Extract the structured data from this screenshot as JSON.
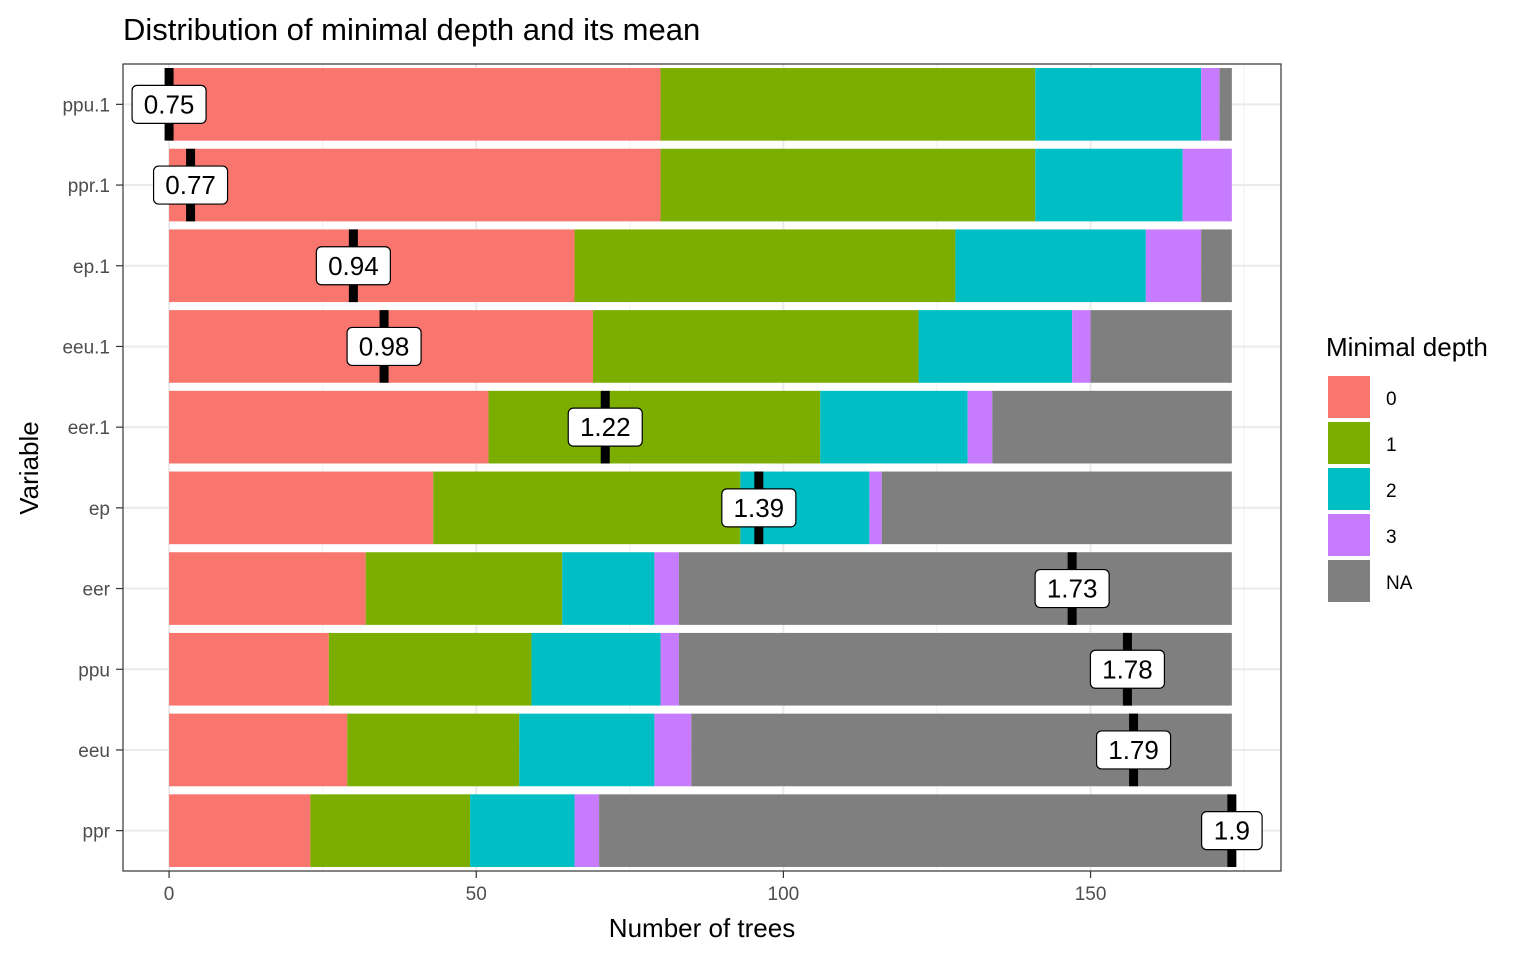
{
  "chart_data": {
    "type": "bar",
    "orientation": "horizontal",
    "stacked": true,
    "title": "Distribution of minimal depth and its mean",
    "xlabel": "Number of trees",
    "ylabel": "Variable",
    "xlim": [
      -7.5,
      181
    ],
    "xticks": [
      0,
      50,
      100,
      150
    ],
    "xtick_labels": [
      "0",
      "50",
      "100",
      "150"
    ],
    "grid": true,
    "legend": {
      "title": "Minimal depth",
      "position": "right",
      "entries": [
        {
          "label": "0",
          "color": "#F8766D"
        },
        {
          "label": "1",
          "color": "#7CAE00"
        },
        {
          "label": "2",
          "color": "#00BFC4"
        },
        {
          "label": "3",
          "color": "#C77CFF"
        },
        {
          "label": "NA",
          "color": "#7F7F7F"
        }
      ]
    },
    "categories": [
      "ppu.1",
      "ppr.1",
      "ep.1",
      "eeu.1",
      "eer.1",
      "ep",
      "eer",
      "ppu",
      "eeu",
      "ppr"
    ],
    "series": [
      {
        "name": "0",
        "color": "#F8766D",
        "values": [
          80,
          80,
          66,
          69,
          52,
          43,
          32,
          26,
          29,
          23
        ]
      },
      {
        "name": "1",
        "color": "#7CAE00",
        "values": [
          61,
          61,
          62,
          53,
          54,
          50,
          32,
          33,
          28,
          26
        ]
      },
      {
        "name": "2",
        "color": "#00BFC4",
        "values": [
          27,
          24,
          31,
          25,
          24,
          21,
          15,
          21,
          22,
          17
        ]
      },
      {
        "name": "3",
        "color": "#C77CFF",
        "values": [
          3,
          8,
          9,
          3,
          4,
          2,
          4,
          3,
          6,
          4
        ]
      },
      {
        "name": "NA",
        "color": "#7F7F7F",
        "values": [
          2,
          0,
          5,
          23,
          39,
          57,
          90,
          90,
          88,
          103
        ]
      }
    ],
    "mean_markers": {
      "x": [
        0,
        3.5,
        30,
        35,
        71,
        96,
        147,
        156,
        157,
        173
      ],
      "labels": [
        "0.75",
        "0.77",
        "0.94",
        "0.98",
        "1.22",
        "1.39",
        "1.73",
        "1.78",
        "1.79",
        "1.9"
      ]
    }
  }
}
